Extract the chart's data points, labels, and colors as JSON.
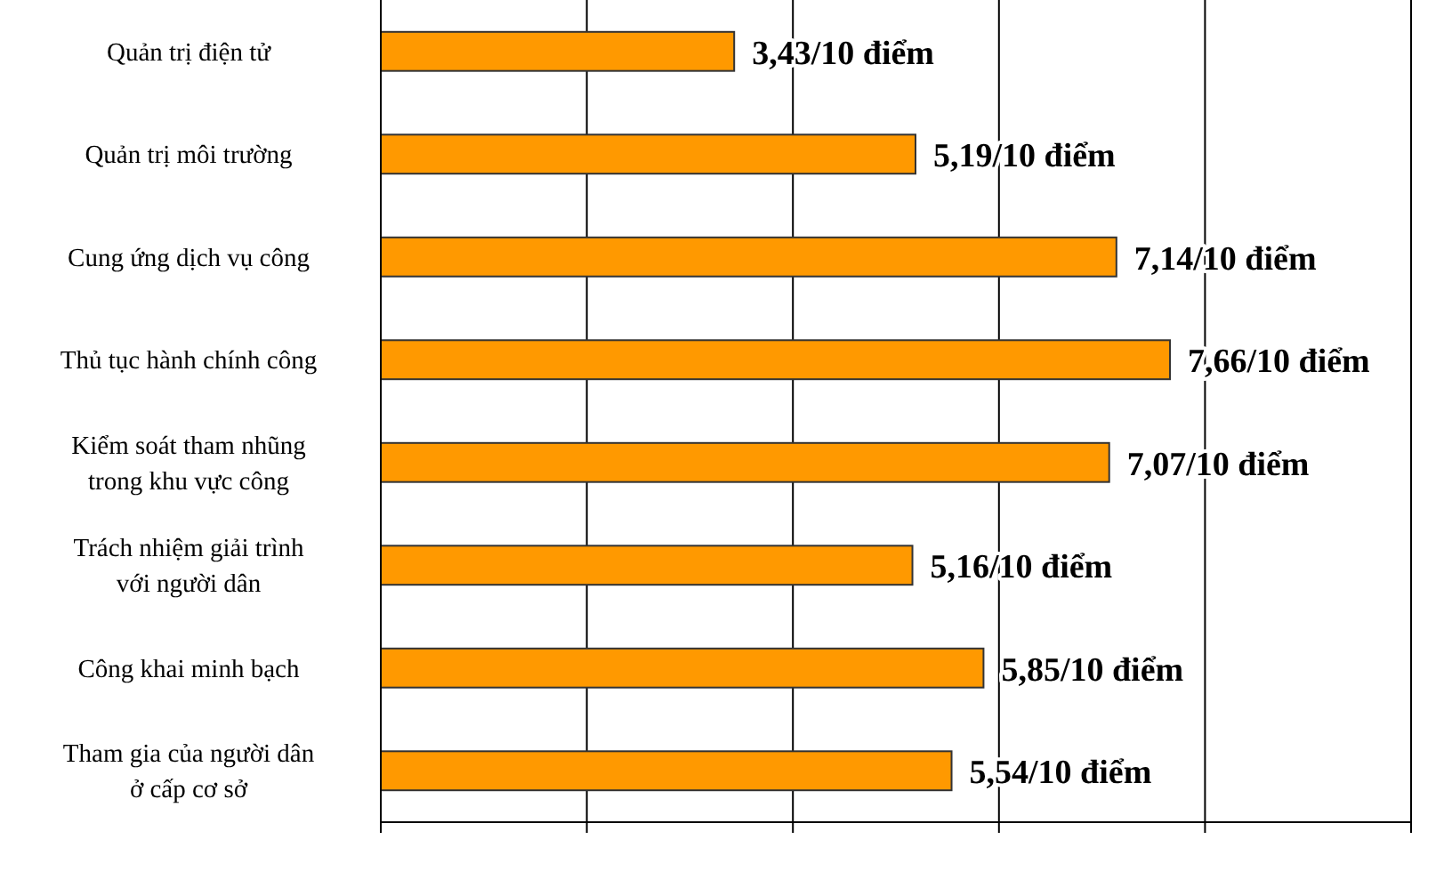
{
  "chart_data": {
    "type": "bar",
    "orientation": "horizontal",
    "categories": [
      "Quản trị điện tử",
      "Quản trị môi trường",
      "Cung ứng dịch vụ công",
      "Thủ tục hành chính công",
      "Kiểm soát tham nhũng trong khu vực công",
      "Trách nhiệm giải trình với người dân",
      "Công khai minh bạch",
      "Tham gia của người dân ở cấp cơ sở"
    ],
    "values": [
      3.43,
      5.19,
      7.14,
      7.66,
      7.07,
      5.16,
      5.85,
      5.54
    ],
    "value_labels": [
      "3,43/10 điểm",
      "5,19/10 điểm",
      "7,14/10 điểm",
      "7,66/10 điểm",
      "7,07/10 điểm",
      "5,16/10 điểm",
      "5,85/10 điểm",
      "5,54/10 điểm"
    ],
    "color": "#ff9900",
    "xlim": [
      0,
      10
    ],
    "xticks": [
      {
        "value": 0,
        "label": null
      },
      {
        "value": 2,
        "label": null
      },
      {
        "value": 4,
        "label": null
      },
      {
        "value": 6,
        "label": null
      },
      {
        "value": 8,
        "label": null
      },
      {
        "value": 10,
        "label": null
      }
    ],
    "grid": "x"
  }
}
